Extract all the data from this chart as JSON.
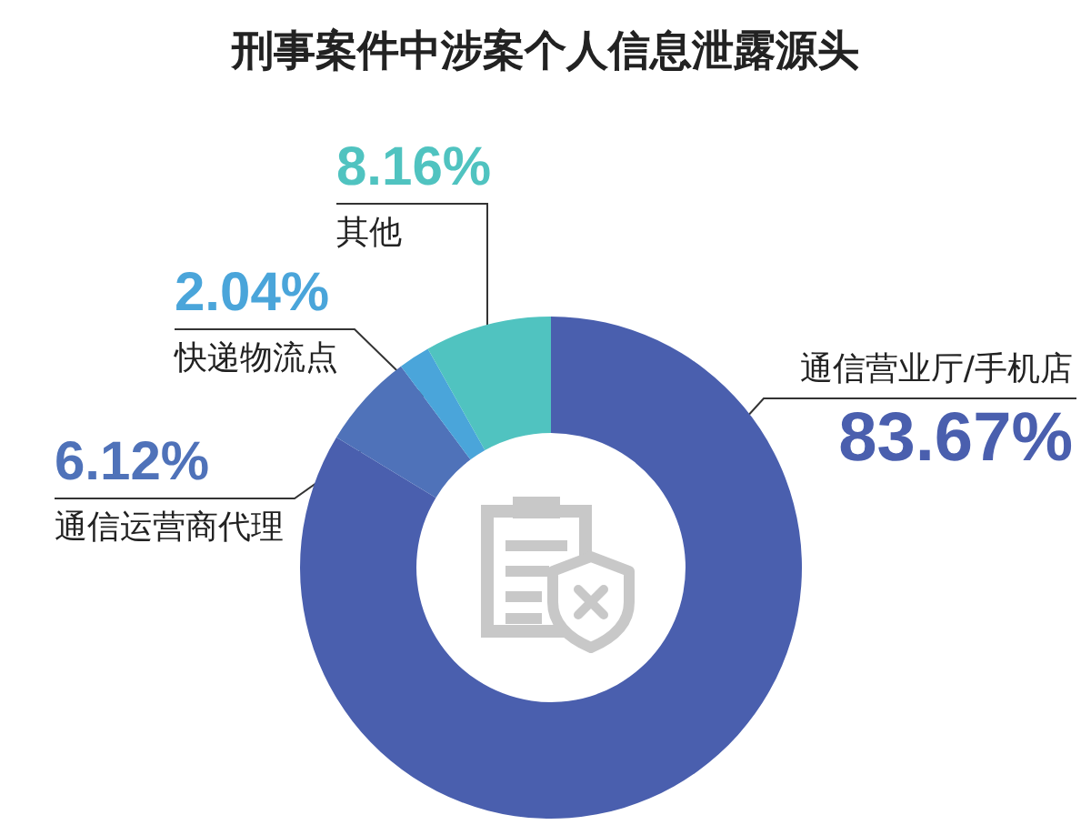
{
  "chart_data": {
    "type": "donut",
    "title": "刑事案件中涉案个人信息泄露源头",
    "categories": [
      "通信营业厅/手机店",
      "通信运营商代理",
      "快递物流点",
      "其他"
    ],
    "values": [
      83.67,
      6.12,
      2.04,
      8.16
    ],
    "value_labels": [
      "83.67%",
      "6.12%",
      "2.04%",
      "8.16%"
    ],
    "colors": [
      "#4a5fae",
      "#4f72b9",
      "#4aa5da",
      "#50c3c0"
    ]
  }
}
